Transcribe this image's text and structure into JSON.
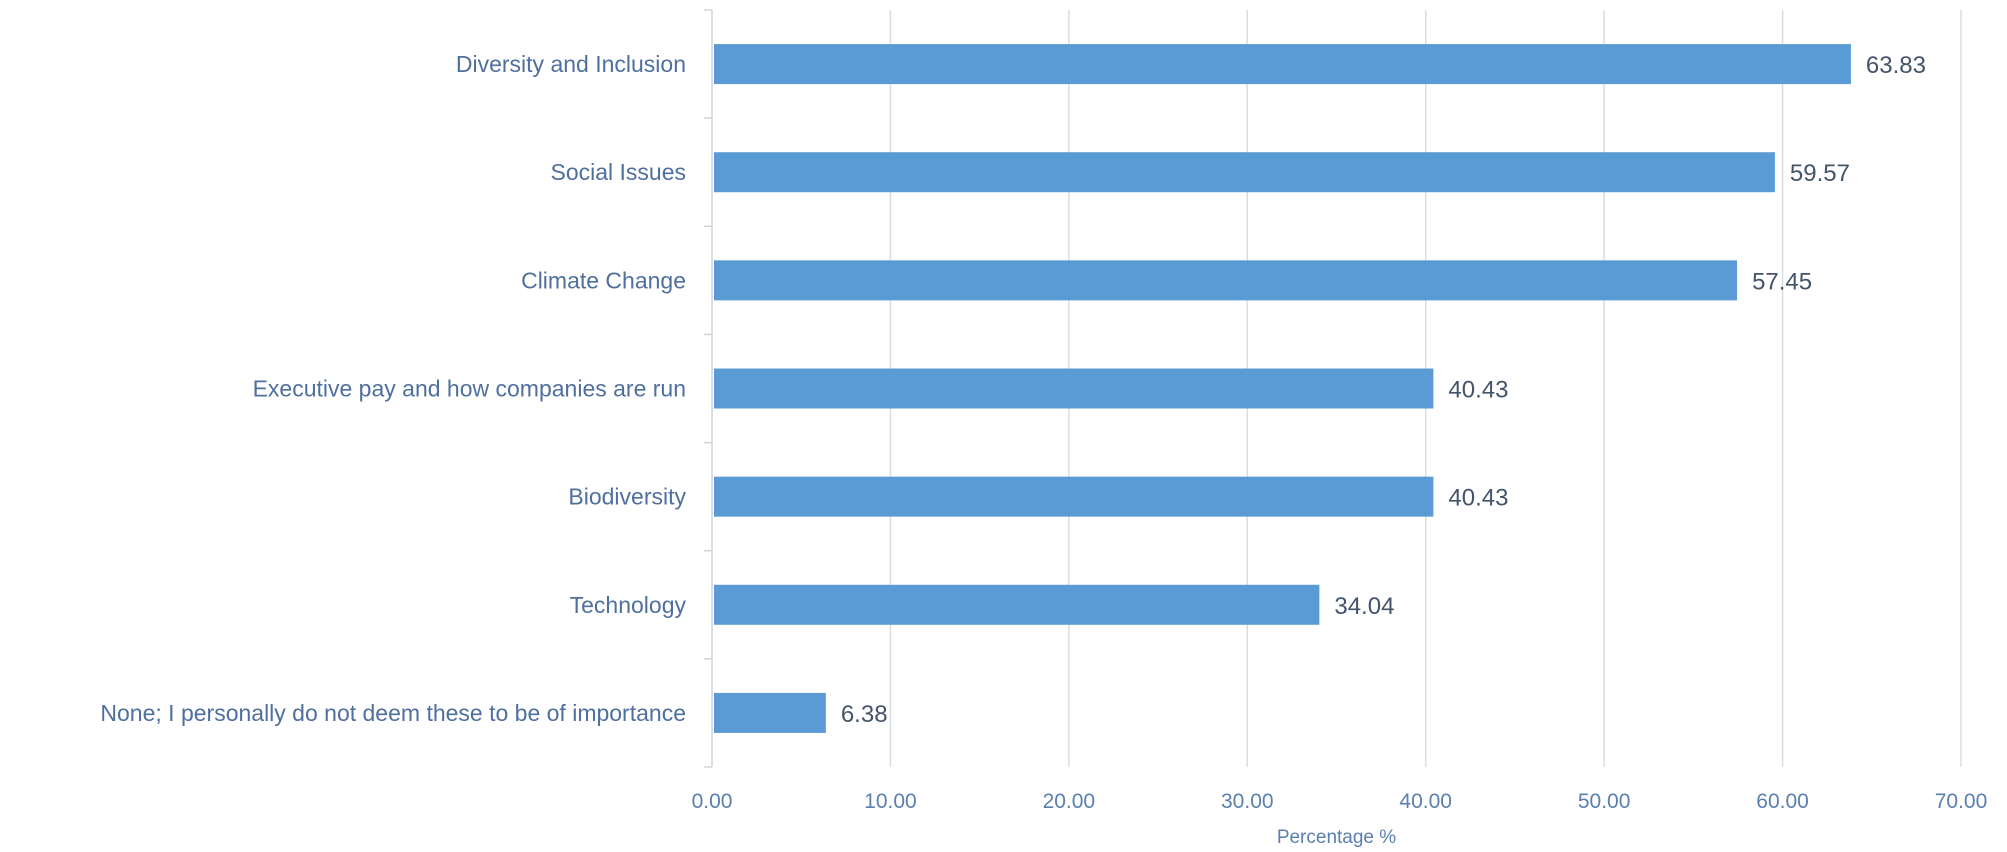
{
  "chart_data": {
    "type": "bar",
    "orientation": "horizontal",
    "title": "",
    "xlabel": "Percentage %",
    "ylabel": "",
    "xlim": [
      0,
      70
    ],
    "x_ticks": [
      0,
      10,
      20,
      30,
      40,
      50,
      60,
      70
    ],
    "x_tick_labels": [
      "0.00",
      "10.00",
      "20.00",
      "30.00",
      "40.00",
      "50.00",
      "60.00",
      "70.00"
    ],
    "grid": "vertical",
    "legend": "none",
    "categories": [
      "Diversity and Inclusion",
      "Social Issues ",
      "Climate Change",
      "Executive pay and how companies are run",
      "Biodiversity",
      "Technology",
      "None; I personally do not deem these to be of importance "
    ],
    "values": [
      63.83,
      59.57,
      57.45,
      40.43,
      40.43,
      34.04,
      6.38
    ],
    "value_labels": [
      "63.83",
      "59.57",
      "57.45",
      "40.43",
      "40.43",
      "34.04",
      "6.38"
    ],
    "colors": {
      "bar": "#5b9bd5",
      "category_text": "#4f6f9f",
      "value_text": "#44546a",
      "axis_text": "#5a7fb0",
      "gridline": "#d9dde3",
      "axis_line": "#d0d4da"
    }
  }
}
